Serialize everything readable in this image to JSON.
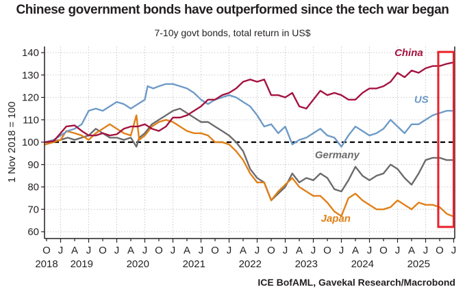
{
  "chart_data": {
    "type": "line",
    "title": "Chinese government bonds have outperformed since the tech war began",
    "subtitle": "7-10y govt bonds, total return in US$",
    "ylabel": "1 Nov 2018 = 100",
    "xlabel": "",
    "source": "ICE BofAML, Gavekal Research/Macrobond",
    "ylim": [
      60,
      140
    ],
    "yticks": [
      60,
      70,
      80,
      90,
      100,
      110,
      120,
      130,
      140
    ],
    "grid": true,
    "reference_line": {
      "value": 100,
      "style": "dashed",
      "color": "#000000"
    },
    "x_quarter_ticks": [
      "O",
      "J",
      "A",
      "J",
      "O",
      "J",
      "A",
      "J",
      "O",
      "J",
      "A",
      "J",
      "O",
      "J",
      "A",
      "J",
      "O",
      "J",
      "A",
      "J",
      "O",
      "J",
      "A",
      "J",
      "O",
      "J",
      "A",
      "J",
      "O",
      "J"
    ],
    "x_year_labels": [
      {
        "label": "2018",
        "quarter_index": 0
      },
      {
        "label": "2019",
        "quarter_index": 2.5
      },
      {
        "label": "2020",
        "quarter_index": 6.5
      },
      {
        "label": "2021",
        "quarter_index": 10.5
      },
      {
        "label": "2022",
        "quarter_index": 14.5
      },
      {
        "label": "2023",
        "quarter_index": 18.5
      },
      {
        "label": "2024",
        "quarter_index": 22.5
      },
      {
        "label": "2025",
        "quarter_index": 26.5
      }
    ],
    "x_range_quarters": [
      -0.15,
      29
    ],
    "highlight_box": {
      "from_quarter": 27.9,
      "to_quarter": 29,
      "color": "#e8202a"
    },
    "series": [
      {
        "name": "China",
        "color": "#a4123f",
        "label_at": {
          "q": 25.8,
          "v": 138.5
        },
        "points": [
          [
            -0.1,
            100
          ],
          [
            0.5,
            100.5
          ],
          [
            1,
            104
          ],
          [
            1.4,
            107
          ],
          [
            2,
            107.5
          ],
          [
            2.5,
            105
          ],
          [
            3,
            103
          ],
          [
            3.5,
            103
          ],
          [
            4,
            104
          ],
          [
            4.5,
            103
          ],
          [
            5,
            103.5
          ],
          [
            5.5,
            106
          ],
          [
            6,
            107
          ],
          [
            6.5,
            107
          ],
          [
            7,
            108
          ],
          [
            7.5,
            106
          ],
          [
            8,
            105
          ],
          [
            8.5,
            107
          ],
          [
            9,
            111
          ],
          [
            9.5,
            111
          ],
          [
            10,
            112
          ],
          [
            10.5,
            114
          ],
          [
            11,
            116
          ],
          [
            11.5,
            119
          ],
          [
            12,
            119
          ],
          [
            12.5,
            121
          ],
          [
            13,
            122
          ],
          [
            13.5,
            124
          ],
          [
            14,
            127
          ],
          [
            14.5,
            128
          ],
          [
            15,
            127
          ],
          [
            15.5,
            128
          ],
          [
            16,
            121
          ],
          [
            16.5,
            121
          ],
          [
            17,
            120
          ],
          [
            17.5,
            122
          ],
          [
            18,
            116
          ],
          [
            18.5,
            115
          ],
          [
            19,
            119
          ],
          [
            19.5,
            123
          ],
          [
            20,
            121
          ],
          [
            20.5,
            122
          ],
          [
            21,
            121
          ],
          [
            21.5,
            119
          ],
          [
            22,
            119
          ],
          [
            22.5,
            122
          ],
          [
            23,
            124
          ],
          [
            23.5,
            124
          ],
          [
            24,
            125
          ],
          [
            24.5,
            127
          ],
          [
            25,
            131
          ],
          [
            25.5,
            129
          ],
          [
            26,
            132
          ],
          [
            26.5,
            131
          ],
          [
            27,
            133
          ],
          [
            27.5,
            134
          ],
          [
            28,
            134
          ],
          [
            28.5,
            135
          ],
          [
            28.9,
            135.5
          ]
        ]
      },
      {
        "name": "US",
        "color": "#6d9ac7",
        "label_at": {
          "q": 26.7,
          "v": 117.5
        },
        "points": [
          [
            -0.1,
            100
          ],
          [
            0.5,
            101
          ],
          [
            1,
            103
          ],
          [
            1.5,
            105
          ],
          [
            2,
            106
          ],
          [
            2.5,
            108
          ],
          [
            3,
            114
          ],
          [
            3.5,
            115
          ],
          [
            4,
            114
          ],
          [
            4.5,
            116
          ],
          [
            5,
            118
          ],
          [
            5.5,
            117
          ],
          [
            6,
            115
          ],
          [
            6.5,
            117
          ],
          [
            7,
            119
          ],
          [
            7.2,
            125
          ],
          [
            7.6,
            124
          ],
          [
            8,
            125
          ],
          [
            8.5,
            126
          ],
          [
            9,
            126
          ],
          [
            9.5,
            125
          ],
          [
            10,
            124
          ],
          [
            10.5,
            122
          ],
          [
            11,
            119
          ],
          [
            11.5,
            117
          ],
          [
            12,
            119
          ],
          [
            12.5,
            120
          ],
          [
            13,
            121
          ],
          [
            13.5,
            120
          ],
          [
            14,
            118
          ],
          [
            14.5,
            116
          ],
          [
            15,
            112
          ],
          [
            15.5,
            107
          ],
          [
            16,
            108
          ],
          [
            16.5,
            104
          ],
          [
            17,
            107
          ],
          [
            17.5,
            99
          ],
          [
            18,
            101
          ],
          [
            18.5,
            102
          ],
          [
            19,
            104
          ],
          [
            19.5,
            106
          ],
          [
            20,
            103
          ],
          [
            20.5,
            102
          ],
          [
            21,
            98
          ],
          [
            21.5,
            103
          ],
          [
            22,
            107
          ],
          [
            22.5,
            105
          ],
          [
            23,
            103
          ],
          [
            23.5,
            104
          ],
          [
            24,
            106
          ],
          [
            24.5,
            110
          ],
          [
            25,
            107
          ],
          [
            25.5,
            104
          ],
          [
            26,
            108
          ],
          [
            26.5,
            108
          ],
          [
            27,
            110
          ],
          [
            27.5,
            112
          ],
          [
            28,
            113
          ],
          [
            28.5,
            114
          ],
          [
            28.9,
            114
          ]
        ]
      },
      {
        "name": "Germany",
        "color": "#6b6b6b",
        "label_at": {
          "q": 20.7,
          "v": 92.8
        },
        "points": [
          [
            -0.1,
            100
          ],
          [
            0.5,
            100.5
          ],
          [
            1,
            101
          ],
          [
            1.5,
            102
          ],
          [
            2,
            101
          ],
          [
            2.5,
            102
          ],
          [
            3,
            103
          ],
          [
            3.5,
            106
          ],
          [
            4,
            104
          ],
          [
            4.5,
            102
          ],
          [
            5,
            102
          ],
          [
            5.5,
            101
          ],
          [
            6,
            102
          ],
          [
            6.4,
            98
          ],
          [
            6.6,
            102
          ],
          [
            7,
            104
          ],
          [
            7.5,
            108
          ],
          [
            8,
            110
          ],
          [
            8.5,
            112
          ],
          [
            9,
            114
          ],
          [
            9.5,
            115
          ],
          [
            10,
            113
          ],
          [
            10.5,
            111
          ],
          [
            11,
            109
          ],
          [
            11.5,
            109
          ],
          [
            12,
            107
          ],
          [
            12.5,
            105
          ],
          [
            13,
            103
          ],
          [
            13.5,
            100
          ],
          [
            14,
            96
          ],
          [
            14.5,
            88
          ],
          [
            15,
            84
          ],
          [
            15.5,
            82
          ],
          [
            16,
            74
          ],
          [
            16.5,
            77
          ],
          [
            17,
            80
          ],
          [
            17.5,
            86
          ],
          [
            18,
            82
          ],
          [
            18.5,
            84
          ],
          [
            19,
            83
          ],
          [
            19.5,
            86
          ],
          [
            20,
            84
          ],
          [
            20.5,
            79
          ],
          [
            21,
            78
          ],
          [
            21.5,
            83
          ],
          [
            22,
            89
          ],
          [
            22.5,
            85
          ],
          [
            23,
            83
          ],
          [
            23.5,
            85
          ],
          [
            24,
            86
          ],
          [
            24.5,
            90
          ],
          [
            25,
            88
          ],
          [
            25.5,
            84
          ],
          [
            26,
            81
          ],
          [
            26.5,
            86
          ],
          [
            27,
            92
          ],
          [
            27.5,
            93
          ],
          [
            28,
            93
          ],
          [
            28.5,
            92
          ],
          [
            28.9,
            92
          ]
        ]
      },
      {
        "name": "Japan",
        "color": "#e07f16",
        "label_at": {
          "q": 20.6,
          "v": 64.5
        },
        "points": [
          [
            -0.1,
            99
          ],
          [
            0.5,
            100
          ],
          [
            1,
            101
          ],
          [
            1.4,
            105
          ],
          [
            2,
            104
          ],
          [
            2.5,
            103
          ],
          [
            3,
            101
          ],
          [
            3.5,
            104
          ],
          [
            4,
            106
          ],
          [
            4.5,
            108
          ],
          [
            5,
            106
          ],
          [
            5.5,
            104
          ],
          [
            6,
            103
          ],
          [
            6.4,
            112
          ],
          [
            6.6,
            101
          ],
          [
            7,
            103
          ],
          [
            7.5,
            107
          ],
          [
            8,
            109
          ],
          [
            8.5,
            110
          ],
          [
            9,
            109
          ],
          [
            9.5,
            107
          ],
          [
            10,
            105
          ],
          [
            10.5,
            104
          ],
          [
            11,
            104
          ],
          [
            11.5,
            103
          ],
          [
            12,
            100
          ],
          [
            12.5,
            100
          ],
          [
            13,
            99
          ],
          [
            13.5,
            96
          ],
          [
            14,
            92
          ],
          [
            14.5,
            86
          ],
          [
            15,
            82
          ],
          [
            15.5,
            82
          ],
          [
            16,
            74
          ],
          [
            16.5,
            78
          ],
          [
            17,
            81
          ],
          [
            17.5,
            84
          ],
          [
            18,
            80
          ],
          [
            18.5,
            78
          ],
          [
            19,
            76
          ],
          [
            19.5,
            76
          ],
          [
            20,
            73
          ],
          [
            20.5,
            69
          ],
          [
            21,
            67
          ],
          [
            21.5,
            75
          ],
          [
            22,
            77
          ],
          [
            22.5,
            74
          ],
          [
            23,
            72
          ],
          [
            23.5,
            70
          ],
          [
            24,
            70
          ],
          [
            24.5,
            71
          ],
          [
            25,
            74
          ],
          [
            25.5,
            72
          ],
          [
            26,
            70
          ],
          [
            26.5,
            73
          ],
          [
            27,
            72
          ],
          [
            27.5,
            72
          ],
          [
            28,
            71
          ],
          [
            28.5,
            68
          ],
          [
            28.9,
            67
          ]
        ]
      }
    ]
  }
}
